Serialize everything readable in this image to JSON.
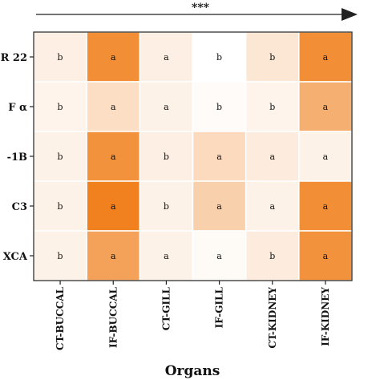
{
  "chart_data": {
    "type": "heatmap",
    "significance_marker": "***",
    "xlabel": "Organs",
    "columns": [
      "CT-BUCCAL",
      "IF-BUCCAL",
      "CT-GILL",
      "IF-GILL",
      "CT-KIDNEY",
      "IF-KIDNEY"
    ],
    "rows": [
      "R 22",
      "F α",
      "-1B",
      "C3",
      "XCA"
    ],
    "letters": [
      [
        "b",
        "a",
        "a",
        "b",
        "b",
        "a"
      ],
      [
        "b",
        "a",
        "a",
        "b",
        "b",
        "a"
      ],
      [
        "b",
        "a",
        "b",
        "a",
        "a",
        "a"
      ],
      [
        "b",
        "a",
        "b",
        "a",
        "a",
        "a"
      ],
      [
        "b",
        "a",
        "a",
        "a",
        "b",
        "a"
      ]
    ],
    "intensity": [
      [
        0.12,
        0.85,
        0.12,
        0.0,
        0.18,
        0.85
      ],
      [
        0.08,
        0.25,
        0.1,
        0.03,
        0.08,
        0.6
      ],
      [
        0.1,
        0.82,
        0.12,
        0.28,
        0.14,
        0.1
      ],
      [
        0.1,
        0.95,
        0.1,
        0.35,
        0.1,
        0.85
      ],
      [
        0.1,
        0.7,
        0.1,
        0.04,
        0.14,
        0.82
      ]
    ],
    "color_low": "#ffffff",
    "color_high": "#ef7a12",
    "grid": true
  }
}
